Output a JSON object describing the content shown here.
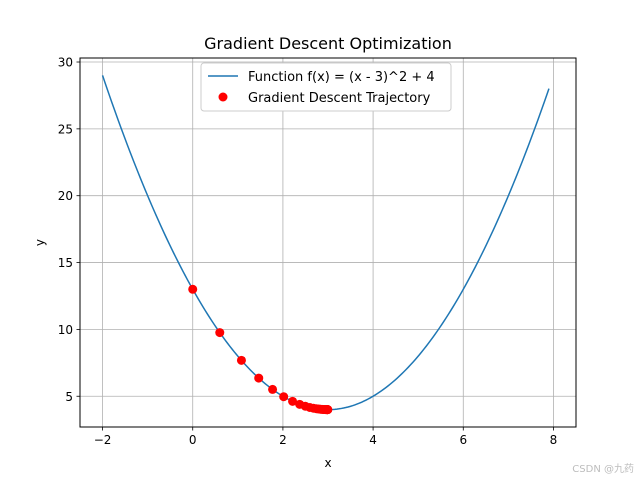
{
  "chart_data": {
    "type": "line",
    "title": "Gradient Descent Optimization",
    "xlabel": "x",
    "ylabel": "y",
    "xlim": [
      -2.5,
      8.5
    ],
    "ylim": [
      2.7,
      30.3
    ],
    "x_ticks": [
      -2,
      0,
      2,
      4,
      6,
      8
    ],
    "y_ticks": [
      5,
      10,
      15,
      20,
      25,
      30
    ],
    "grid": true,
    "legend_position": "top-center",
    "series": [
      {
        "name": "Function f(x) = (x - 3)^2 + 4",
        "kind": "line",
        "color": "#1f77b4",
        "function": "(x - 3)^2 + 4",
        "x_range": [
          -2,
          7.9
        ]
      },
      {
        "name": "Gradient Descent Trajectory",
        "kind": "scatter",
        "color": "#ff0000",
        "x": [
          0.0,
          0.6,
          1.08,
          1.464,
          1.771,
          2.017,
          2.214,
          2.371,
          2.497,
          2.597,
          2.678,
          2.742,
          2.794,
          2.835,
          2.868,
          2.894,
          2.916,
          2.932,
          2.946,
          2.957,
          2.965,
          2.972,
          2.978,
          2.982,
          2.986,
          2.989,
          2.991,
          2.993,
          2.994,
          2.995
        ],
        "y": [
          13.0,
          9.76,
          7.686,
          6.359,
          5.51,
          4.966,
          4.618,
          4.396,
          4.253,
          4.162,
          4.104,
          4.067,
          4.043,
          4.027,
          4.017,
          4.011,
          4.007,
          4.005,
          4.003,
          4.002,
          4.001,
          4.001,
          4.0,
          4.0,
          4.0,
          4.0,
          4.0,
          4.0,
          4.0,
          4.0
        ]
      }
    ]
  },
  "watermark": "CSDN @九药"
}
